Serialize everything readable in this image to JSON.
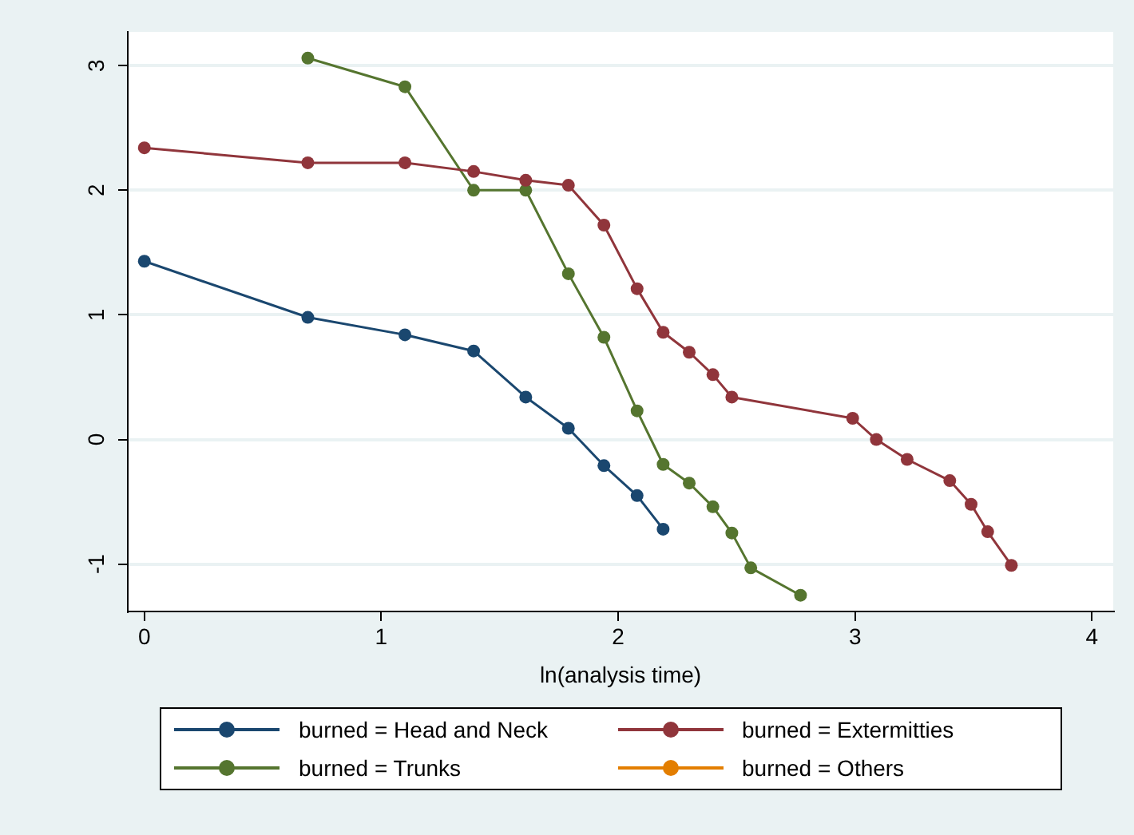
{
  "chart_data": {
    "type": "line",
    "xlabel": "ln(analysis time)",
    "xlim": [
      -0.07,
      4.09
    ],
    "ylim": [
      -1.38,
      3.27
    ],
    "xticks": [
      0,
      1,
      2,
      3,
      4
    ],
    "yticks": [
      -1,
      0,
      1,
      2,
      3
    ],
    "grid": "y",
    "legend": "bottom",
    "marker": "circle",
    "line_style": "solid",
    "series": [
      {
        "name": "burned = Head and Neck",
        "color": "#1a476f",
        "x": [
          0,
          0.69,
          1.1,
          1.39,
          1.61,
          1.79,
          1.94,
          2.08,
          2.19
        ],
        "values": [
          1.43,
          0.98,
          0.84,
          0.71,
          0.34,
          0.09,
          -0.21,
          -0.45,
          -0.72
        ]
      },
      {
        "name": "burned = Extermitties",
        "color": "#90353b",
        "x": [
          0,
          0.69,
          1.1,
          1.39,
          1.61,
          1.79,
          1.94,
          2.08,
          2.19,
          2.3,
          2.4,
          2.48,
          2.99,
          3.09,
          3.22,
          3.4,
          3.49,
          3.56,
          3.66
        ],
        "values": [
          2.34,
          2.22,
          2.22,
          2.15,
          2.08,
          2.04,
          1.72,
          1.21,
          0.86,
          0.7,
          0.52,
          0.34,
          0.17,
          0.0,
          -0.16,
          -0.33,
          -0.52,
          -0.74,
          -1.01
        ]
      },
      {
        "name": "burned = Trunks",
        "color": "#55752f",
        "x": [
          0.69,
          1.1,
          1.39,
          1.61,
          1.79,
          1.94,
          2.08,
          2.19,
          2.3,
          2.4,
          2.48,
          2.56,
          2.77
        ],
        "values": [
          3.06,
          2.83,
          2.0,
          2.0,
          1.33,
          0.82,
          0.23,
          -0.2,
          -0.35,
          -0.54,
          -0.75,
          -1.03,
          -1.25
        ]
      },
      {
        "name": "burned = Others",
        "color": "#e37e00"
      }
    ]
  }
}
